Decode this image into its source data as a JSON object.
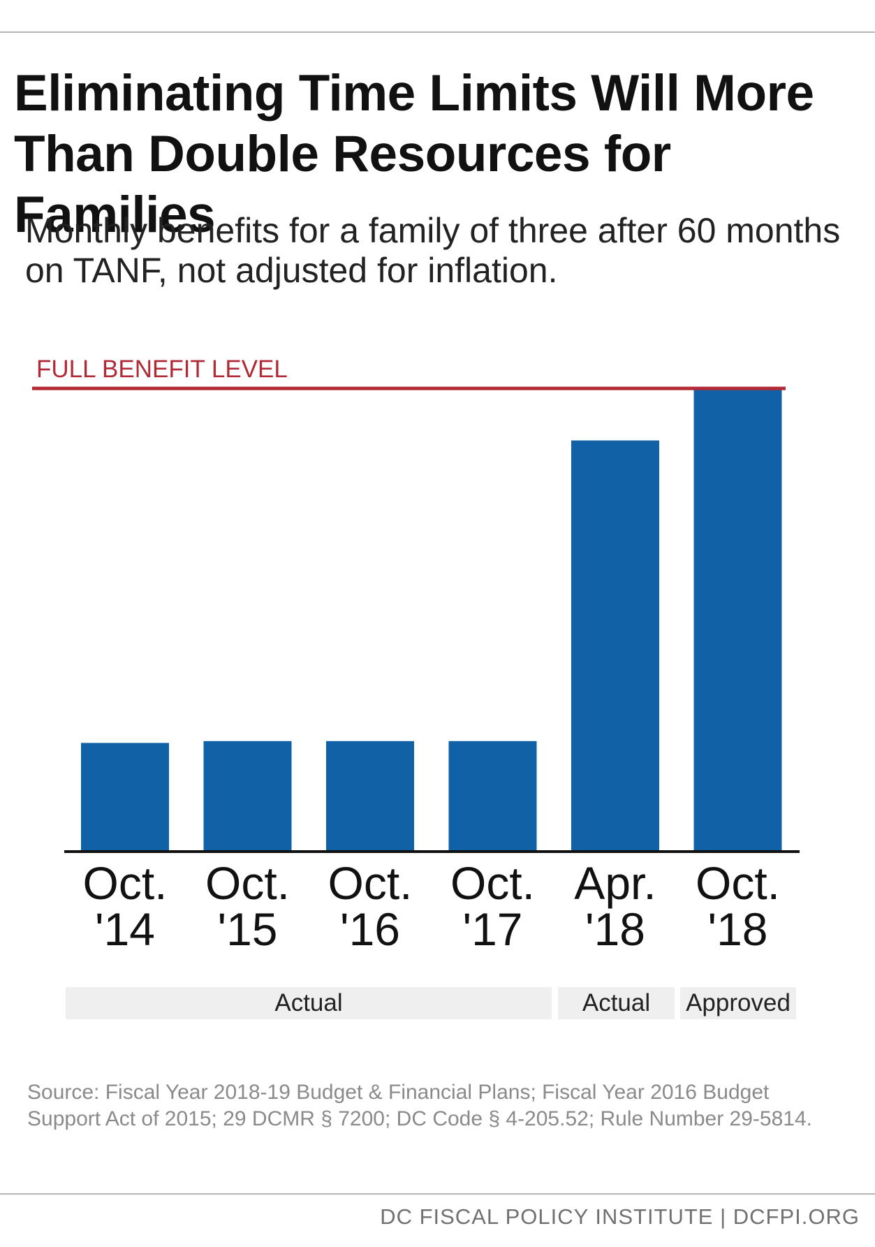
{
  "header": {
    "title": "Eliminating Time Limits Will More Than Double Resources for Families",
    "subtitle": "Monthly benefits for a family of three after 60 months on TANF, not adjusted for inflation."
  },
  "chart_data": {
    "type": "bar",
    "categories": [
      {
        "line1": "Oct.",
        "line2": "'14"
      },
      {
        "line1": "Oct.",
        "line2": "'15"
      },
      {
        "line1": "Oct.",
        "line2": "'16"
      },
      {
        "line1": "Oct.",
        "line2": "'17"
      },
      {
        "line1": "Apr.",
        "line2": "'18"
      },
      {
        "line1": "Oct.",
        "line2": "'18"
      }
    ],
    "values_relative_to_full_benefit": [
      0.233,
      0.237,
      0.237,
      0.237,
      0.89,
      1.0
    ],
    "reference_line": {
      "label": "FULL BENEFIT LEVEL",
      "value": 1.0,
      "color": "#b22a35"
    },
    "bar_color": "#1061a6",
    "groups": [
      {
        "label": "Actual",
        "from": 0,
        "to": 3
      },
      {
        "label": "Actual",
        "from": 4,
        "to": 4
      },
      {
        "label": "Approved",
        "from": 5,
        "to": 5
      }
    ],
    "grid": false
  },
  "source": "Source: Fiscal Year 2018-19 Budget & Financial Plans; Fiscal Year 2016 Budget Support Act of 2015; 29 DCMR § 7200; DC Code § 4-205.52; Rule Number 29-5814.",
  "footer": {
    "org": "DC FISCAL POLICY INSTITUTE | DCFPI.ORG"
  }
}
